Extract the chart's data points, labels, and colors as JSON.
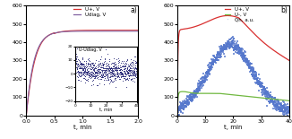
{
  "panel_a": {
    "title": "a)",
    "xlabel": "t, min",
    "xlim": [
      0,
      2
    ],
    "ylim": [
      0,
      600
    ],
    "yticks": [
      0,
      100,
      200,
      300,
      400,
      500,
      600
    ],
    "xticks": [
      0,
      0.5,
      1,
      1.5,
      2
    ],
    "legend": [
      "U+, V",
      "Udiag, V"
    ],
    "line_colors": [
      "#d93030",
      "#8060a0"
    ],
    "inset": {
      "xlim": [
        0,
        40
      ],
      "ylim": [
        -20,
        20
      ],
      "xticks": [
        0,
        10,
        20,
        30,
        40
      ],
      "yticks": [
        -20,
        -10,
        0,
        10,
        20
      ],
      "xlabel": "t, min",
      "title": "U-Udiag, V",
      "scatter_color": "#1a1a6e"
    }
  },
  "panel_b": {
    "title": "b)",
    "xlabel": "t, min",
    "xlim": [
      0,
      40
    ],
    "ylim": [
      0,
      600
    ],
    "yticks": [
      0,
      100,
      200,
      300,
      400,
      500,
      600
    ],
    "xticks": [
      0,
      10,
      20,
      30,
      40
    ],
    "legend": [
      "U+, V",
      "U-, V",
      "Qh, a.u."
    ],
    "line_colors": [
      "#d93030",
      "#70b840",
      "#5577cc"
    ]
  }
}
